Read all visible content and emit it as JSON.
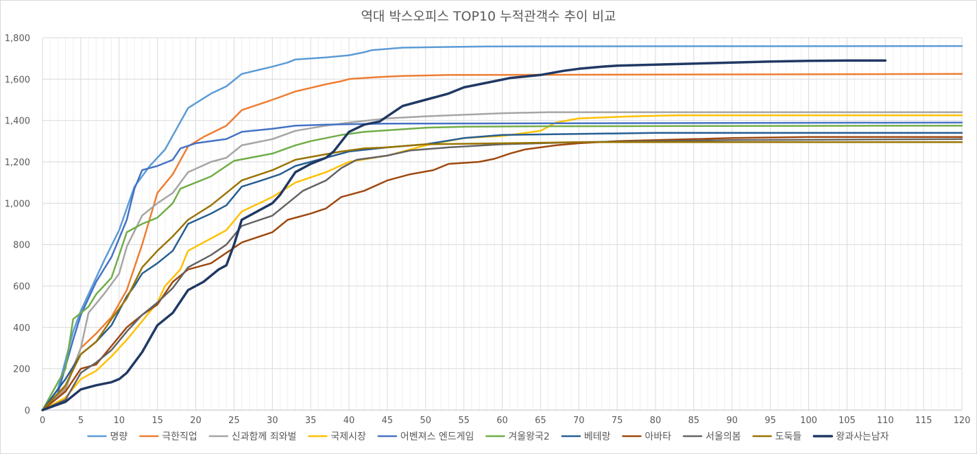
{
  "chart_data": {
    "type": "line",
    "title": "역대 박스오피스 TOP10 누적관객수 추이 비교",
    "xlabel": "",
    "ylabel": "",
    "xlim": [
      0,
      120
    ],
    "ylim": [
      0,
      1800
    ],
    "x_ticks": [
      "0",
      "5",
      "10",
      "15",
      "20",
      "25",
      "30",
      "35",
      "40",
      "45",
      "50",
      "55",
      "60",
      "65",
      "70",
      "75",
      "80",
      "85",
      "90",
      "95",
      "100",
      "105",
      "110",
      "115",
      "120"
    ],
    "y_ticks": [
      "0",
      "200",
      "400",
      "600",
      "800",
      "1,000",
      "1,200",
      "1,400",
      "1,600",
      "1,800"
    ],
    "grid": "vertical and horizontal",
    "legend": "bottom",
    "series": [
      {
        "name": "명량",
        "color": "#5B9BD5",
        "width": 2.5,
        "points": [
          [
            0,
            0
          ],
          [
            2,
            100
          ],
          [
            4,
            380
          ],
          [
            5,
            480
          ],
          [
            8,
            720
          ],
          [
            10,
            870
          ],
          [
            12,
            1080
          ],
          [
            14,
            1180
          ],
          [
            16,
            1260
          ],
          [
            19,
            1460
          ],
          [
            22,
            1530
          ],
          [
            24,
            1565
          ],
          [
            26,
            1625
          ],
          [
            30,
            1660
          ],
          [
            32,
            1680
          ],
          [
            33,
            1695
          ],
          [
            35,
            1700
          ],
          [
            37,
            1705
          ],
          [
            40,
            1715
          ],
          [
            42,
            1730
          ],
          [
            43,
            1740
          ],
          [
            47,
            1752
          ],
          [
            52,
            1755
          ],
          [
            58,
            1758
          ],
          [
            120,
            1760
          ]
        ]
      },
      {
        "name": "극한직업",
        "color": "#ED7D31",
        "width": 2.5,
        "points": [
          [
            0,
            0
          ],
          [
            3,
            110
          ],
          [
            5,
            300
          ],
          [
            7,
            370
          ],
          [
            9,
            450
          ],
          [
            11,
            580
          ],
          [
            13,
            800
          ],
          [
            15,
            1050
          ],
          [
            17,
            1140
          ],
          [
            19,
            1275
          ],
          [
            21,
            1320
          ],
          [
            24,
            1375
          ],
          [
            26,
            1450
          ],
          [
            30,
            1500
          ],
          [
            33,
            1540
          ],
          [
            37,
            1575
          ],
          [
            39,
            1590
          ],
          [
            40,
            1600
          ],
          [
            44,
            1610
          ],
          [
            47,
            1615
          ],
          [
            53,
            1620
          ],
          [
            120,
            1625
          ]
        ]
      },
      {
        "name": "신과함께 죄와벌",
        "color": "#A5A5A5",
        "width": 2.5,
        "points": [
          [
            0,
            0
          ],
          [
            3,
            100
          ],
          [
            5,
            300
          ],
          [
            6,
            470
          ],
          [
            8,
            560
          ],
          [
            10,
            660
          ],
          [
            11,
            790
          ],
          [
            13,
            940
          ],
          [
            15,
            1000
          ],
          [
            17,
            1050
          ],
          [
            19,
            1150
          ],
          [
            22,
            1200
          ],
          [
            24,
            1220
          ],
          [
            26,
            1280
          ],
          [
            30,
            1310
          ],
          [
            33,
            1350
          ],
          [
            37,
            1375
          ],
          [
            40,
            1390
          ],
          [
            45,
            1410
          ],
          [
            50,
            1420
          ],
          [
            60,
            1435
          ],
          [
            66,
            1440
          ],
          [
            120,
            1440
          ]
        ]
      },
      {
        "name": "국제시장",
        "color": "#FFC000",
        "width": 2.5,
        "points": [
          [
            0,
            0
          ],
          [
            3,
            60
          ],
          [
            5,
            150
          ],
          [
            7,
            190
          ],
          [
            9,
            260
          ],
          [
            11,
            340
          ],
          [
            13,
            430
          ],
          [
            15,
            520
          ],
          [
            16,
            600
          ],
          [
            18,
            680
          ],
          [
            19,
            770
          ],
          [
            22,
            830
          ],
          [
            24,
            870
          ],
          [
            26,
            960
          ],
          [
            30,
            1030
          ],
          [
            33,
            1100
          ],
          [
            37,
            1150
          ],
          [
            40,
            1200
          ],
          [
            45,
            1230
          ],
          [
            50,
            1280
          ],
          [
            55,
            1315
          ],
          [
            60,
            1325
          ],
          [
            65,
            1350
          ],
          [
            67,
            1390
          ],
          [
            70,
            1410
          ],
          [
            77,
            1420
          ],
          [
            83,
            1425
          ],
          [
            120,
            1425
          ]
        ]
      },
      {
        "name": "어벤져스 엔드게임",
        "color": "#4472C4",
        "width": 2.5,
        "points": [
          [
            0,
            0
          ],
          [
            2,
            80
          ],
          [
            4,
            340
          ],
          [
            5,
            460
          ],
          [
            7,
            620
          ],
          [
            9,
            740
          ],
          [
            11,
            920
          ],
          [
            12,
            1070
          ],
          [
            13,
            1160
          ],
          [
            15,
            1180
          ],
          [
            17,
            1210
          ],
          [
            18,
            1265
          ],
          [
            20,
            1290
          ],
          [
            23,
            1305
          ],
          [
            24,
            1310
          ],
          [
            26,
            1345
          ],
          [
            30,
            1360
          ],
          [
            33,
            1375
          ],
          [
            37,
            1380
          ],
          [
            45,
            1385
          ],
          [
            120,
            1390
          ]
        ]
      },
      {
        "name": "겨울왕국2",
        "color": "#70AD47",
        "width": 2.5,
        "points": [
          [
            0,
            0
          ],
          [
            3,
            200
          ],
          [
            4,
            440
          ],
          [
            6,
            500
          ],
          [
            7,
            560
          ],
          [
            9,
            640
          ],
          [
            10,
            750
          ],
          [
            11,
            860
          ],
          [
            13,
            900
          ],
          [
            15,
            930
          ],
          [
            17,
            1000
          ],
          [
            18,
            1070
          ],
          [
            20,
            1100
          ],
          [
            22,
            1130
          ],
          [
            24,
            1180
          ],
          [
            25,
            1205
          ],
          [
            30,
            1240
          ],
          [
            33,
            1280
          ],
          [
            35,
            1300
          ],
          [
            39,
            1330
          ],
          [
            42,
            1345
          ],
          [
            46,
            1355
          ],
          [
            50,
            1365
          ],
          [
            55,
            1370
          ],
          [
            65,
            1372
          ],
          [
            120,
            1375
          ]
        ]
      },
      {
        "name": "베테랑",
        "color": "#255E91",
        "width": 2.5,
        "points": [
          [
            0,
            0
          ],
          [
            3,
            150
          ],
          [
            5,
            270
          ],
          [
            7,
            330
          ],
          [
            9,
            410
          ],
          [
            11,
            550
          ],
          [
            12,
            600
          ],
          [
            13,
            660
          ],
          [
            15,
            710
          ],
          [
            17,
            770
          ],
          [
            19,
            900
          ],
          [
            22,
            950
          ],
          [
            24,
            990
          ],
          [
            26,
            1080
          ],
          [
            29,
            1115
          ],
          [
            31,
            1140
          ],
          [
            33,
            1180
          ],
          [
            37,
            1220
          ],
          [
            40,
            1250
          ],
          [
            45,
            1270
          ],
          [
            50,
            1285
          ],
          [
            55,
            1315
          ],
          [
            60,
            1330
          ],
          [
            70,
            1335
          ],
          [
            80,
            1340
          ],
          [
            120,
            1340
          ]
        ]
      },
      {
        "name": "아바타",
        "color": "#9E480E",
        "width": 2.5,
        "points": [
          [
            0,
            0
          ],
          [
            3,
            90
          ],
          [
            5,
            200
          ],
          [
            7,
            220
          ],
          [
            9,
            310
          ],
          [
            11,
            400
          ],
          [
            13,
            460
          ],
          [
            15,
            510
          ],
          [
            17,
            620
          ],
          [
            19,
            680
          ],
          [
            22,
            710
          ],
          [
            24,
            760
          ],
          [
            26,
            810
          ],
          [
            30,
            860
          ],
          [
            32,
            920
          ],
          [
            35,
            950
          ],
          [
            37,
            975
          ],
          [
            39,
            1030
          ],
          [
            42,
            1060
          ],
          [
            45,
            1110
          ],
          [
            48,
            1140
          ],
          [
            51,
            1160
          ],
          [
            53,
            1190
          ],
          [
            57,
            1200
          ],
          [
            59,
            1215
          ],
          [
            61,
            1240
          ],
          [
            63,
            1260
          ],
          [
            67,
            1280
          ],
          [
            70,
            1290
          ],
          [
            75,
            1300
          ],
          [
            80,
            1305
          ],
          [
            90,
            1315
          ],
          [
            100,
            1320
          ],
          [
            120,
            1320
          ]
        ]
      },
      {
        "name": "서울의봄",
        "color": "#636363",
        "width": 2.5,
        "points": [
          [
            0,
            0
          ],
          [
            3,
            50
          ],
          [
            5,
            180
          ],
          [
            7,
            230
          ],
          [
            9,
            290
          ],
          [
            11,
            380
          ],
          [
            13,
            460
          ],
          [
            15,
            520
          ],
          [
            17,
            590
          ],
          [
            19,
            690
          ],
          [
            22,
            750
          ],
          [
            24,
            800
          ],
          [
            26,
            890
          ],
          [
            30,
            940
          ],
          [
            32,
            1000
          ],
          [
            34,
            1060
          ],
          [
            37,
            1110
          ],
          [
            39,
            1170
          ],
          [
            41,
            1210
          ],
          [
            45,
            1230
          ],
          [
            48,
            1255
          ],
          [
            53,
            1270
          ],
          [
            60,
            1285
          ],
          [
            70,
            1295
          ],
          [
            90,
            1305
          ],
          [
            120,
            1310
          ]
        ]
      },
      {
        "name": "도둑들",
        "color": "#997300",
        "width": 2.5,
        "points": [
          [
            0,
            0
          ],
          [
            3,
            120
          ],
          [
            5,
            270
          ],
          [
            7,
            330
          ],
          [
            9,
            440
          ],
          [
            11,
            540
          ],
          [
            13,
            690
          ],
          [
            15,
            770
          ],
          [
            17,
            840
          ],
          [
            19,
            920
          ],
          [
            22,
            990
          ],
          [
            24,
            1050
          ],
          [
            26,
            1110
          ],
          [
            30,
            1160
          ],
          [
            33,
            1210
          ],
          [
            36,
            1230
          ],
          [
            39,
            1250
          ],
          [
            42,
            1265
          ],
          [
            45,
            1270
          ],
          [
            50,
            1285
          ],
          [
            60,
            1290
          ],
          [
            70,
            1295
          ],
          [
            120,
            1295
          ]
        ]
      },
      {
        "name": "왕과사는남자",
        "color": "#203864",
        "width": 3.5,
        "points": [
          [
            0,
            0
          ],
          [
            3,
            40
          ],
          [
            5,
            100
          ],
          [
            7,
            120
          ],
          [
            9,
            135
          ],
          [
            10,
            150
          ],
          [
            11,
            180
          ],
          [
            13,
            280
          ],
          [
            15,
            410
          ],
          [
            17,
            470
          ],
          [
            19,
            580
          ],
          [
            21,
            620
          ],
          [
            23,
            680
          ],
          [
            24,
            700
          ],
          [
            25,
            800
          ],
          [
            26,
            920
          ],
          [
            28,
            960
          ],
          [
            30,
            1000
          ],
          [
            31,
            1040
          ],
          [
            33,
            1150
          ],
          [
            35,
            1190
          ],
          [
            37,
            1220
          ],
          [
            38,
            1250
          ],
          [
            40,
            1345
          ],
          [
            42,
            1380
          ],
          [
            44,
            1395
          ],
          [
            45,
            1420
          ],
          [
            47,
            1470
          ],
          [
            49,
            1490
          ],
          [
            51,
            1510
          ],
          [
            53,
            1530
          ],
          [
            55,
            1560
          ],
          [
            57,
            1575
          ],
          [
            59,
            1590
          ],
          [
            61,
            1605
          ],
          [
            65,
            1620
          ],
          [
            68,
            1640
          ],
          [
            70,
            1650
          ],
          [
            73,
            1660
          ],
          [
            75,
            1665
          ],
          [
            80,
            1670
          ],
          [
            85,
            1675
          ],
          [
            90,
            1680
          ],
          [
            95,
            1685
          ],
          [
            100,
            1688
          ],
          [
            105,
            1690
          ],
          [
            110,
            1690
          ]
        ]
      }
    ]
  }
}
